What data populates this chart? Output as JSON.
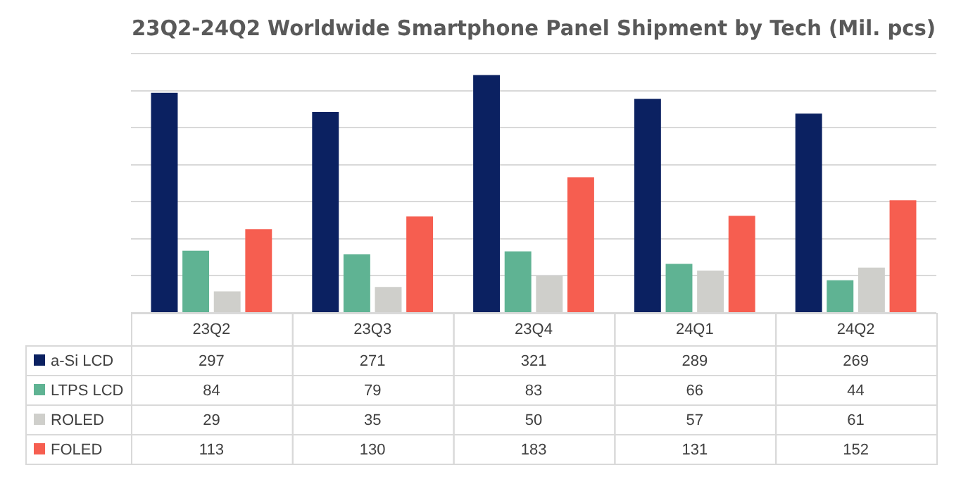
{
  "chart_data": {
    "type": "bar",
    "title": "23Q2-24Q2 Worldwide Smartphone Panel Shipment by Tech (Mil. pcs)",
    "categories": [
      "23Q2",
      "23Q3",
      "23Q4",
      "24Q1",
      "24Q2"
    ],
    "series": [
      {
        "name": "a-Si LCD",
        "color": "#0b2161",
        "values": [
          297,
          271,
          321,
          289,
          269
        ]
      },
      {
        "name": "LTPS LCD",
        "color": "#5fb393",
        "values": [
          84,
          79,
          83,
          66,
          44
        ]
      },
      {
        "name": "ROLED",
        "color": "#cfcfcb",
        "values": [
          29,
          35,
          50,
          57,
          61
        ]
      },
      {
        "name": "FOLED",
        "color": "#f65e50",
        "values": [
          113,
          130,
          183,
          131,
          152
        ]
      }
    ],
    "ylim": [
      0,
      350
    ],
    "yticks": [
      {
        "value": 0,
        "label": null
      },
      {
        "value": 50,
        "label": null
      },
      {
        "value": 100,
        "label": null
      },
      {
        "value": 150,
        "label": null
      },
      {
        "value": 200,
        "label": null
      },
      {
        "value": 250,
        "label": null
      },
      {
        "value": 300,
        "label": null
      },
      {
        "value": 350,
        "label": null
      }
    ],
    "grid": "y",
    "legend": "bottom",
    "data_labels": true,
    "tick_labels": "x"
  }
}
